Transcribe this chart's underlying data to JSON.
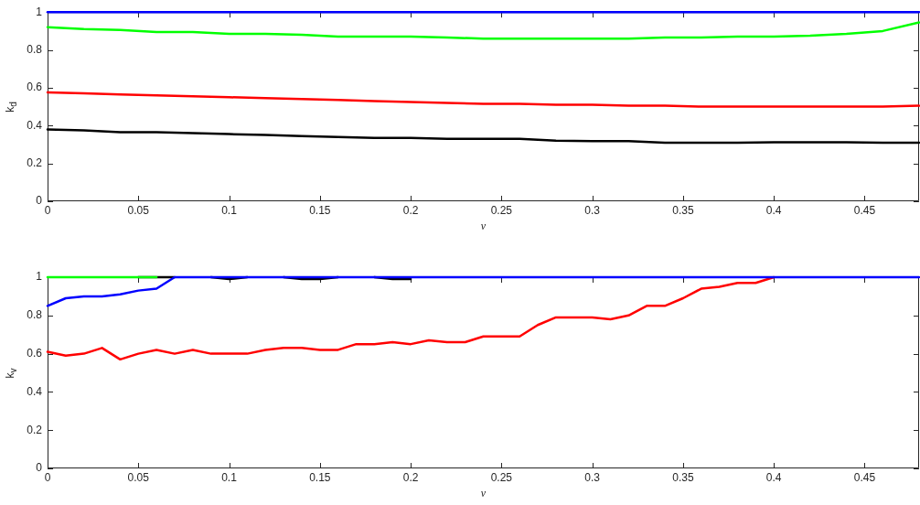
{
  "chart_data": [
    {
      "type": "line",
      "xlabel": "ν",
      "ylabel": "k$_{d}$",
      "x": [
        0,
        0.02,
        0.04,
        0.06,
        0.08,
        0.1,
        0.12,
        0.14,
        0.16,
        0.18,
        0.2,
        0.22,
        0.24,
        0.26,
        0.28,
        0.3,
        0.32,
        0.34,
        0.36,
        0.38,
        0.4,
        0.42,
        0.44,
        0.46,
        0.48
      ],
      "series": [
        {
          "color": "#000000",
          "values": [
            0.38,
            0.375,
            0.365,
            0.365,
            0.36,
            0.355,
            0.35,
            0.345,
            0.34,
            0.335,
            0.335,
            0.33,
            0.33,
            0.33,
            0.32,
            0.318,
            0.318,
            0.31,
            0.31,
            0.31,
            0.312,
            0.312,
            0.312,
            0.31,
            0.31
          ]
        },
        {
          "color": "#ff0000",
          "values": [
            0.575,
            0.57,
            0.565,
            0.56,
            0.555,
            0.55,
            0.545,
            0.54,
            0.535,
            0.53,
            0.525,
            0.52,
            0.515,
            0.515,
            0.51,
            0.51,
            0.505,
            0.505,
            0.5,
            0.5,
            0.5,
            0.5,
            0.5,
            0.5,
            0.505
          ]
        },
        {
          "color": "#00ff00",
          "values": [
            0.92,
            0.91,
            0.905,
            0.895,
            0.895,
            0.885,
            0.885,
            0.88,
            0.87,
            0.87,
            0.87,
            0.865,
            0.86,
            0.86,
            0.86,
            0.86,
            0.86,
            0.865,
            0.865,
            0.87,
            0.87,
            0.875,
            0.885,
            0.9,
            0.945
          ]
        },
        {
          "color": "#0000ff",
          "values": [
            1,
            1,
            1,
            1,
            1,
            1,
            1,
            1,
            1,
            1,
            1,
            1,
            1,
            1,
            1,
            1,
            1,
            1,
            1,
            1,
            1,
            1,
            1,
            1,
            1
          ]
        }
      ],
      "xlim": [
        0,
        0.48
      ],
      "xticks": [
        0,
        0.05,
        0.1,
        0.15,
        0.2,
        0.25,
        0.3,
        0.35,
        0.4,
        0.45
      ],
      "ylim": [
        0,
        1
      ],
      "yticks": [
        0,
        0.2,
        0.4,
        0.6,
        0.8,
        1
      ],
      "grid": false,
      "legend": false,
      "marker": "none",
      "line_style": "solid"
    },
    {
      "type": "line",
      "xlabel": "ν",
      "ylabel": "k$_{v}$",
      "x": [
        0,
        0.01,
        0.02,
        0.03,
        0.04,
        0.05,
        0.06,
        0.07,
        0.08,
        0.09,
        0.1,
        0.11,
        0.12,
        0.13,
        0.14,
        0.15,
        0.16,
        0.17,
        0.18,
        0.19,
        0.2,
        0.21,
        0.22,
        0.23,
        0.24,
        0.25,
        0.26,
        0.27,
        0.28,
        0.29,
        0.3,
        0.31,
        0.32,
        0.33,
        0.34,
        0.35,
        0.36,
        0.37,
        0.38,
        0.39,
        0.4,
        0.41,
        0.42,
        0.43,
        0.44,
        0.45,
        0.46,
        0.47,
        0.48
      ],
      "series": [
        {
          "color": "#000000",
          "values": [
            null,
            null,
            null,
            null,
            null,
            1,
            1,
            1,
            null,
            1,
            0.99,
            1,
            null,
            1,
            0.99,
            0.99,
            1,
            null,
            1,
            0.99,
            0.99,
            null,
            null,
            null,
            null,
            null,
            null,
            null,
            null,
            null,
            null,
            null,
            null,
            null,
            null,
            null,
            null,
            null,
            null,
            null,
            null,
            null,
            null,
            null,
            null,
            null,
            null,
            null,
            null
          ]
        },
        {
          "color": "#ff0000",
          "values": [
            0.61,
            0.59,
            0.6,
            0.63,
            0.57,
            0.6,
            0.62,
            0.6,
            0.62,
            0.6,
            0.6,
            0.6,
            0.62,
            0.63,
            0.63,
            0.62,
            0.62,
            0.65,
            0.65,
            0.66,
            0.65,
            0.67,
            0.66,
            0.66,
            0.69,
            0.69,
            0.69,
            0.75,
            0.79,
            0.79,
            0.79,
            0.78,
            0.8,
            0.85,
            0.85,
            0.89,
            0.94,
            0.95,
            0.97,
            0.97,
            1,
            null,
            null,
            null,
            null,
            null,
            null,
            null,
            null
          ]
        },
        {
          "color": "#00ff00",
          "values": [
            1,
            1,
            1,
            1,
            1,
            1,
            1,
            null,
            null,
            null,
            null,
            null,
            null,
            null,
            null,
            null,
            null,
            null,
            null,
            null,
            null,
            null,
            null,
            null,
            null,
            null,
            null,
            null,
            null,
            null,
            null,
            null,
            null,
            null,
            null,
            null,
            null,
            null,
            null,
            null,
            null,
            null,
            null,
            null,
            null,
            null,
            null,
            null,
            null
          ]
        },
        {
          "color": "#0000ff",
          "values": [
            0.85,
            0.89,
            0.9,
            0.9,
            0.91,
            0.93,
            0.94,
            1,
            1,
            1,
            1,
            1,
            1,
            1,
            1,
            1,
            1,
            1,
            1,
            1,
            1,
            1,
            1,
            1,
            1,
            1,
            1,
            1,
            1,
            1,
            1,
            1,
            1,
            1,
            1,
            1,
            1,
            1,
            1,
            1,
            1,
            1,
            1,
            1,
            1,
            1,
            1,
            1,
            1
          ]
        }
      ],
      "xlim": [
        0,
        0.48
      ],
      "xticks": [
        0,
        0.05,
        0.1,
        0.15,
        0.2,
        0.25,
        0.3,
        0.35,
        0.4,
        0.45
      ],
      "ylim": [
        0,
        1
      ],
      "yticks": [
        0,
        0.2,
        0.4,
        0.6,
        0.8,
        1
      ],
      "grid": false,
      "legend": false,
      "marker": "none",
      "line_style": "solid"
    }
  ]
}
